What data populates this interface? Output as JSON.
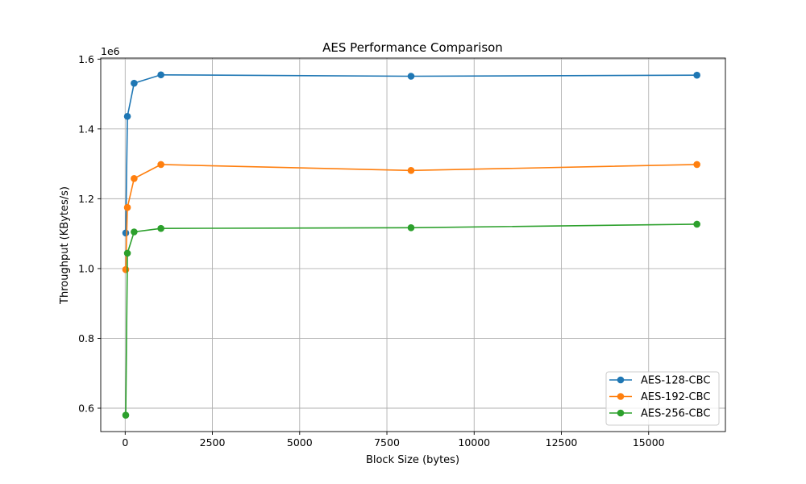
{
  "chart_data": {
    "type": "line",
    "title": "AES Performance Comparison",
    "xlabel": "Block Size (bytes)",
    "ylabel": "Throughput (KBytes/s)",
    "y_offset_text": "1e6",
    "x": [
      16,
      64,
      256,
      1024,
      8192,
      16384
    ],
    "xlim": [
      -700,
      17200
    ],
    "ylim": [
      0.533,
      1.603
    ],
    "y_scale_factor": 1000000,
    "x_ticks": [
      0,
      2500,
      5000,
      7500,
      10000,
      12500,
      15000
    ],
    "x_tick_labels": [
      "0",
      "2500",
      "5000",
      "7500",
      "10000",
      "12500",
      "15000"
    ],
    "y_ticks": [
      0.6,
      0.8,
      1.0,
      1.2,
      1.4,
      1.6
    ],
    "y_tick_labels": [
      "0.6",
      "0.8",
      "1.0",
      "1.2",
      "1.4",
      "1.6"
    ],
    "grid": true,
    "legend_position": "lower-right",
    "series": [
      {
        "name": "AES-128-CBC",
        "color": "#1f77b4",
        "values": [
          1.102,
          1.436,
          1.531,
          1.555,
          1.551,
          1.554
        ]
      },
      {
        "name": "AES-192-CBC",
        "color": "#ff7f0e",
        "values": [
          0.997,
          1.175,
          1.258,
          1.298,
          1.281,
          1.298
        ]
      },
      {
        "name": "AES-256-CBC",
        "color": "#2ca02c",
        "values": [
          0.58,
          1.044,
          1.105,
          1.115,
          1.117,
          1.127
        ]
      }
    ]
  }
}
